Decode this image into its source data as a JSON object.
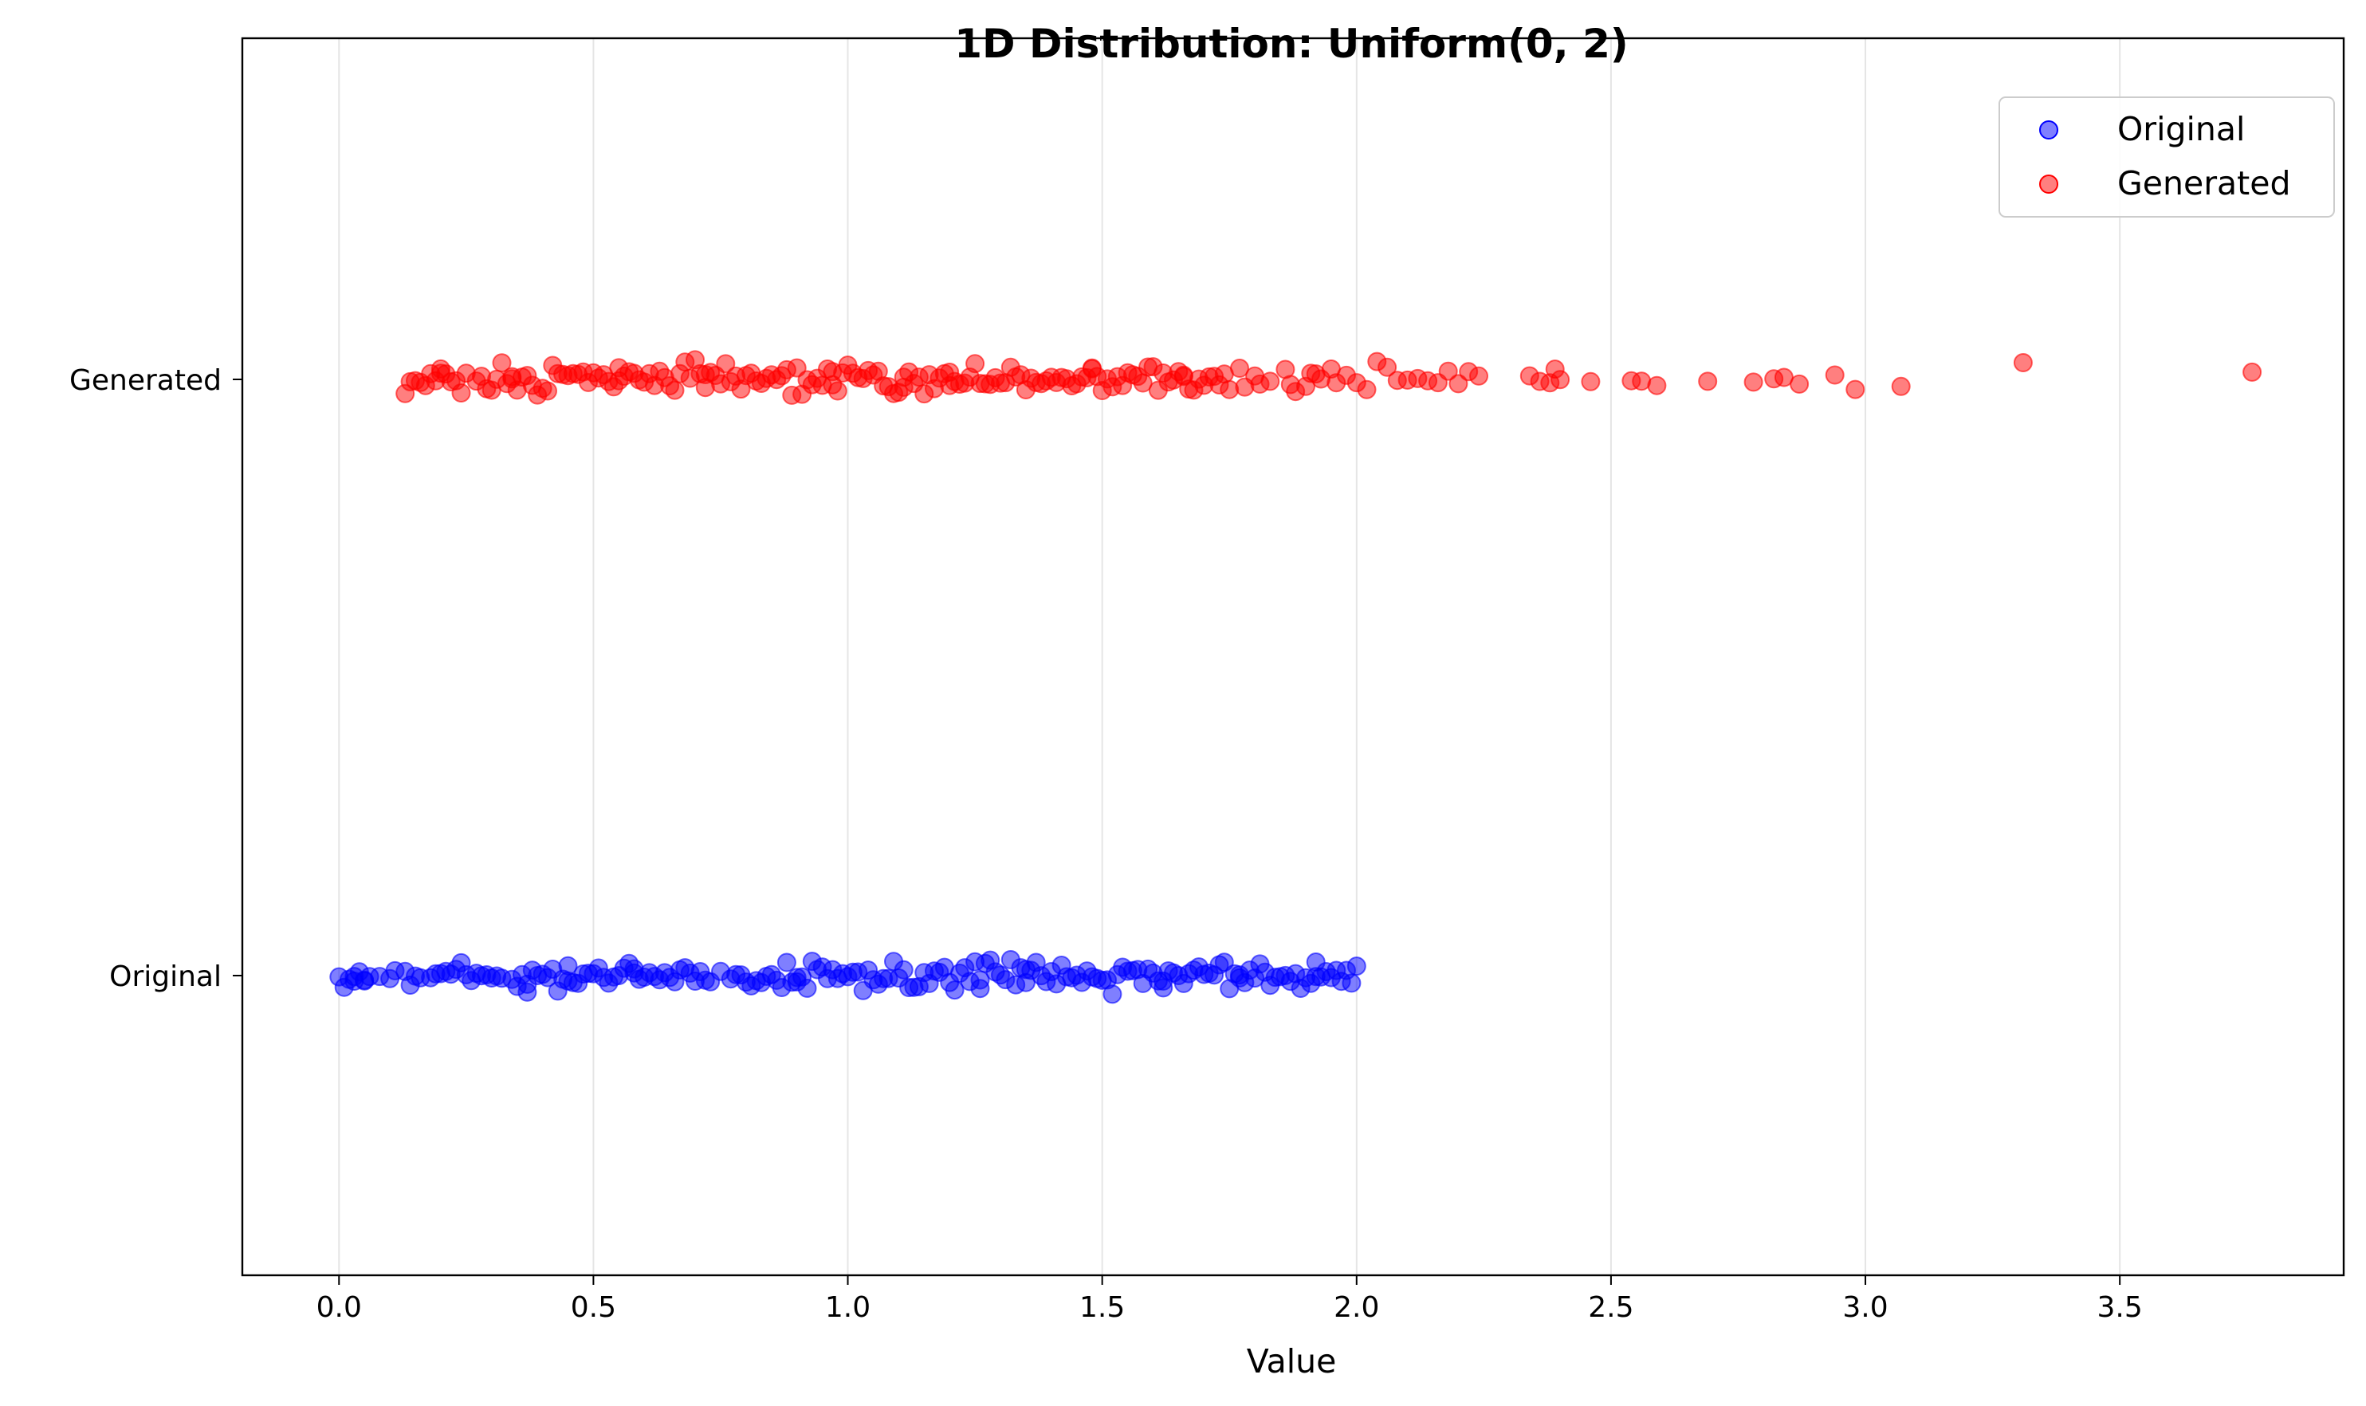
{
  "chart_data": {
    "type": "scatter",
    "title": "1D Distribution: Uniform(0, 2)",
    "xlabel": "Value",
    "ylabel": "",
    "xlim": [
      -0.19,
      3.94
    ],
    "x_ticks": [
      0.0,
      0.5,
      1.0,
      1.5,
      2.0,
      2.5,
      3.0,
      3.5
    ],
    "x_tick_labels": [
      "0.0",
      "0.5",
      "1.0",
      "1.5",
      "2.0",
      "2.5",
      "3.0",
      "3.5"
    ],
    "categories": [
      "Original",
      "Generated"
    ],
    "grid": "vertical",
    "legend_position": "top-right",
    "marker_alpha": 0.5,
    "series": [
      {
        "name": "Original",
        "color": "#0000ff",
        "category": "Original",
        "values": [
          0.0,
          0.01,
          0.02,
          0.03,
          0.03,
          0.04,
          0.05,
          0.06,
          0.08,
          0.1,
          0.11,
          0.13,
          0.14,
          0.15,
          0.16,
          0.18,
          0.19,
          0.2,
          0.21,
          0.22,
          0.23,
          0.24,
          0.25,
          0.26,
          0.27,
          0.28,
          0.29,
          0.3,
          0.31,
          0.32,
          0.34,
          0.35,
          0.36,
          0.37,
          0.38,
          0.39,
          0.4,
          0.41,
          0.42,
          0.43,
          0.44,
          0.45,
          0.46,
          0.47,
          0.48,
          0.49,
          0.5,
          0.51,
          0.52,
          0.53,
          0.54,
          0.55,
          0.56,
          0.57,
          0.58,
          0.59,
          0.6,
          0.61,
          0.62,
          0.63,
          0.64,
          0.65,
          0.66,
          0.67,
          0.68,
          0.69,
          0.7,
          0.71,
          0.72,
          0.73,
          0.75,
          0.77,
          0.78,
          0.79,
          0.8,
          0.81,
          0.82,
          0.83,
          0.84,
          0.85,
          0.86,
          0.87,
          0.88,
          0.89,
          0.9,
          0.91,
          0.92,
          0.93,
          0.94,
          0.95,
          0.96,
          0.97,
          0.98,
          0.99,
          1.0,
          1.01,
          1.02,
          1.03,
          1.04,
          1.05,
          1.06,
          1.07,
          1.08,
          1.09,
          1.1,
          1.11,
          1.12,
          1.13,
          1.14,
          1.15,
          1.16,
          1.17,
          1.18,
          1.19,
          1.2,
          1.21,
          1.22,
          1.23,
          1.24,
          1.25,
          1.26,
          1.27,
          1.28,
          1.29,
          1.3,
          1.31,
          1.32,
          1.33,
          1.34,
          1.35,
          1.36,
          1.37,
          1.38,
          1.39,
          1.4,
          1.41,
          1.42,
          1.43,
          1.44,
          1.45,
          1.46,
          1.47,
          1.48,
          1.49,
          1.5,
          1.51,
          1.52,
          1.53,
          1.54,
          1.55,
          1.56,
          1.57,
          1.58,
          1.59,
          1.6,
          1.61,
          1.62,
          1.63,
          1.64,
          1.65,
          1.66,
          1.67,
          1.68,
          1.69,
          1.7,
          1.71,
          1.72,
          1.73,
          1.74,
          1.75,
          1.76,
          1.77,
          1.78,
          1.79,
          1.8,
          1.81,
          1.82,
          1.83,
          1.84,
          1.85,
          1.86,
          1.87,
          1.88,
          1.89,
          1.9,
          1.91,
          1.92,
          1.93,
          1.94,
          1.95,
          1.96,
          1.97,
          1.98,
          1.99,
          2.0,
          0.37,
          0.58,
          1.26,
          1.62,
          1.92,
          0.05,
          0.45,
          0.9,
          1.35,
          1.77
        ]
      },
      {
        "name": "Generated",
        "color": "#ff0000",
        "category": "Generated",
        "values": [
          0.13,
          0.14,
          0.15,
          0.16,
          0.17,
          0.18,
          0.19,
          0.2,
          0.21,
          0.22,
          0.23,
          0.24,
          0.25,
          0.27,
          0.28,
          0.29,
          0.3,
          0.31,
          0.32,
          0.33,
          0.34,
          0.35,
          0.36,
          0.37,
          0.38,
          0.39,
          0.4,
          0.41,
          0.42,
          0.43,
          0.44,
          0.45,
          0.46,
          0.47,
          0.48,
          0.49,
          0.5,
          0.51,
          0.52,
          0.53,
          0.54,
          0.55,
          0.56,
          0.57,
          0.58,
          0.59,
          0.6,
          0.61,
          0.62,
          0.63,
          0.64,
          0.65,
          0.66,
          0.67,
          0.68,
          0.69,
          0.7,
          0.71,
          0.72,
          0.73,
          0.74,
          0.75,
          0.76,
          0.77,
          0.78,
          0.79,
          0.8,
          0.81,
          0.82,
          0.83,
          0.84,
          0.85,
          0.86,
          0.87,
          0.88,
          0.89,
          0.9,
          0.91,
          0.92,
          0.93,
          0.94,
          0.95,
          0.96,
          0.97,
          0.98,
          0.99,
          1.0,
          1.01,
          1.02,
          1.03,
          1.04,
          1.05,
          1.06,
          1.07,
          1.08,
          1.09,
          1.1,
          1.11,
          1.12,
          1.13,
          1.14,
          1.15,
          1.16,
          1.17,
          1.18,
          1.19,
          1.2,
          1.21,
          1.22,
          1.23,
          1.24,
          1.25,
          1.26,
          1.27,
          1.28,
          1.29,
          1.3,
          1.31,
          1.32,
          1.33,
          1.34,
          1.35,
          1.36,
          1.37,
          1.38,
          1.39,
          1.4,
          1.41,
          1.42,
          1.43,
          1.44,
          1.45,
          1.46,
          1.47,
          1.48,
          1.49,
          1.5,
          1.51,
          1.52,
          1.53,
          1.54,
          1.55,
          1.56,
          1.57,
          1.58,
          1.59,
          1.6,
          1.61,
          1.62,
          1.63,
          1.64,
          1.65,
          1.66,
          1.67,
          1.68,
          1.69,
          1.7,
          1.71,
          1.72,
          1.73,
          1.74,
          1.75,
          1.77,
          1.78,
          1.8,
          1.81,
          1.83,
          1.86,
          1.87,
          1.88,
          1.9,
          1.92,
          1.93,
          1.95,
          1.96,
          1.98,
          2.0,
          2.02,
          2.04,
          2.06,
          2.08,
          2.1,
          2.12,
          2.14,
          2.16,
          2.18,
          2.2,
          2.22,
          2.24,
          2.34,
          2.36,
          2.38,
          2.39,
          2.4,
          2.46,
          2.54,
          2.56,
          2.59,
          2.69,
          2.78,
          2.82,
          2.84,
          2.87,
          2.94,
          2.98,
          3.07,
          3.31,
          3.76,
          0.2,
          0.55,
          0.97,
          1.2,
          1.48,
          1.91,
          0.34,
          0.72,
          1.11,
          1.66
        ]
      }
    ]
  }
}
